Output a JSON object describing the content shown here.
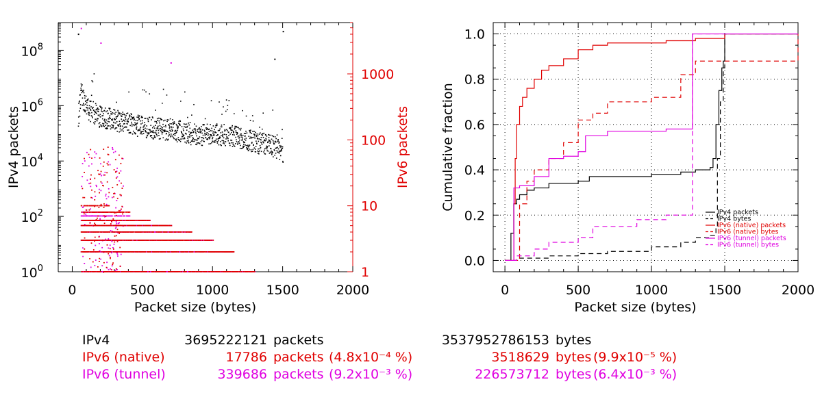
{
  "colors": {
    "ipv4": "#000000",
    "native": "#e00000",
    "tunnel": "#e000e0"
  },
  "chart_data": [
    {
      "type": "scatter",
      "xlabel": "Packet size (bytes)",
      "ylabel": "IPv4 packets",
      "ylabel_right": "IPv6 packets",
      "xlim": [
        -100,
        2000
      ],
      "x_ticks": [
        0,
        500,
        1000,
        1500,
        2000
      ],
      "ylim_left": [
        1,
        1000000000
      ],
      "ylim_right": [
        1,
        6000
      ],
      "y_scale": "log",
      "y_ticks_left": [
        "10^0",
        "10^2",
        "10^4",
        "10^6",
        "10^8"
      ],
      "y_ticks_right": [
        "1",
        "10",
        "100",
        "1000"
      ],
      "series": [
        {
          "name": "IPv4",
          "axis": "left",
          "color": "#000000",
          "trend": {
            "x": [
              40,
              60,
              80,
              120,
              200,
              300,
              400,
              500,
              600,
              700,
              800,
              900,
              1000,
              1100,
              1200,
              1300,
              1400,
              1450,
              1500
            ],
            "y": [
              300000,
              3000000,
              1500000,
              700000,
              400000,
              300000,
              220000,
              180000,
              160000,
              140000,
              110000,
              90000,
              100000,
              90000,
              70000,
              50000,
              40000,
              30000,
              20000
            ]
          },
          "highlights": [
            {
              "x": 40,
              "y": 400000000
            },
            {
              "x": 1500,
              "y": 500000000
            },
            {
              "x": 1440,
              "y": 50000000
            }
          ]
        },
        {
          "name": "IPv6 (native)",
          "axis": "right",
          "color": "#e00000",
          "levels": [
            1,
            2,
            3,
            4,
            5,
            6,
            8,
            10
          ],
          "x_range": [
            60,
            1300
          ]
        },
        {
          "name": "IPv6 (tunnel)",
          "axis": "right",
          "color": "#e000e0",
          "levels": [
            1,
            2,
            3,
            4,
            5,
            6,
            7,
            8
          ],
          "x_range": [
            60,
            1300
          ],
          "highlights": [
            {
              "x": 60,
              "y": 5000
            },
            {
              "x": 200,
              "y": 3000
            },
            {
              "x": 700,
              "y": 1500
            }
          ]
        }
      ]
    },
    {
      "type": "line",
      "xlabel": "Packet size (bytes)",
      "ylabel": "Cumulative fraction",
      "xlim": [
        -80,
        2000
      ],
      "ylim": [
        -0.05,
        1.05
      ],
      "x_ticks": [
        0,
        500,
        1000,
        1500,
        2000
      ],
      "y_ticks": [
        "0.0",
        "0.2",
        "0.4",
        "0.6",
        "0.8",
        "1.0"
      ],
      "grid": true,
      "legend": "bottom-right",
      "series": [
        {
          "name": "IPv4 packets",
          "color": "#000000",
          "dash": false,
          "x": [
            0,
            40,
            41,
            60,
            80,
            100,
            150,
            200,
            300,
            500,
            576,
            700,
            1000,
            1200,
            1300,
            1400,
            1420,
            1440,
            1460,
            1480,
            1490,
            1500,
            2000
          ],
          "y": [
            0,
            0,
            0.12,
            0.25,
            0.27,
            0.29,
            0.31,
            0.32,
            0.34,
            0.35,
            0.37,
            0.37,
            0.38,
            0.39,
            0.4,
            0.41,
            0.45,
            0.6,
            0.75,
            0.85,
            0.88,
            1.0,
            1.0
          ]
        },
        {
          "name": "IPv4 bytes",
          "color": "#000000",
          "dash": true,
          "x": [
            0,
            40,
            100,
            300,
            500,
            700,
            1000,
            1200,
            1300,
            1400,
            1440,
            1450,
            1470,
            1490,
            1500,
            2000
          ],
          "y": [
            0,
            0,
            0.01,
            0.02,
            0.03,
            0.04,
            0.06,
            0.08,
            0.1,
            0.11,
            0.15,
            0.45,
            0.7,
            0.85,
            1.0,
            1.0
          ]
        },
        {
          "name": "IPv6 (native) packets",
          "color": "#e00000",
          "dash": false,
          "x": [
            0,
            60,
            61,
            70,
            80,
            100,
            120,
            150,
            200,
            250,
            300,
            400,
            500,
            600,
            700,
            900,
            1100,
            1300,
            1500,
            2000
          ],
          "y": [
            0,
            0,
            0.25,
            0.45,
            0.6,
            0.68,
            0.72,
            0.76,
            0.8,
            0.84,
            0.86,
            0.89,
            0.93,
            0.95,
            0.96,
            0.96,
            0.97,
            0.98,
            1.0,
            1.0
          ]
        },
        {
          "name": "IPv6 (native) bytes",
          "color": "#e00000",
          "dash": true,
          "x": [
            0,
            80,
            100,
            150,
            200,
            300,
            400,
            500,
            600,
            700,
            1000,
            1200,
            1300,
            1500,
            2000
          ],
          "y": [
            0,
            0,
            0.25,
            0.35,
            0.4,
            0.45,
            0.52,
            0.62,
            0.65,
            0.7,
            0.72,
            0.82,
            0.88,
            0.88,
            1.0
          ]
        },
        {
          "name": "IPv6 (tunnel) packets",
          "color": "#e000e0",
          "dash": false,
          "x": [
            0,
            60,
            61,
            100,
            200,
            300,
            400,
            500,
            550,
            700,
            900,
            1100,
            1270,
            1280,
            1500,
            2000
          ],
          "y": [
            0,
            0,
            0.32,
            0.33,
            0.37,
            0.45,
            0.46,
            0.48,
            0.55,
            0.57,
            0.57,
            0.58,
            0.58,
            1.0,
            1.0,
            1.0
          ]
        },
        {
          "name": "IPv6 (tunnel) bytes",
          "color": "#e000e0",
          "dash": true,
          "x": [
            0,
            80,
            200,
            300,
            500,
            600,
            900,
            1100,
            1270,
            1280,
            1500,
            2000
          ],
          "y": [
            0,
            0.02,
            0.05,
            0.08,
            0.1,
            0.15,
            0.18,
            0.2,
            0.2,
            1.0,
            1.0,
            1.0
          ]
        }
      ]
    }
  ],
  "summary": [
    {
      "name": "IPv4",
      "packets": "3695222121",
      "packets_unit": "packets",
      "packets_pct": "",
      "bytes": "3537952786153",
      "bytes_unit": "bytes",
      "bytes_pct": "",
      "color": "#000000"
    },
    {
      "name": "IPv6 (native)",
      "packets": "17786",
      "packets_unit": "packets",
      "packets_pct": "(4.8x10⁻⁴ %)",
      "bytes": "3518629",
      "bytes_unit": "bytes",
      "bytes_pct": "(9.9x10⁻⁵ %)",
      "color": "#e00000"
    },
    {
      "name": "IPv6 (tunnel)",
      "packets": "339686",
      "packets_unit": "packets",
      "packets_pct": "(9.2x10⁻³ %)",
      "bytes": "226573712",
      "bytes_unit": "bytes",
      "bytes_pct": "(6.4x10⁻³ %)",
      "color": "#e000e0"
    }
  ]
}
